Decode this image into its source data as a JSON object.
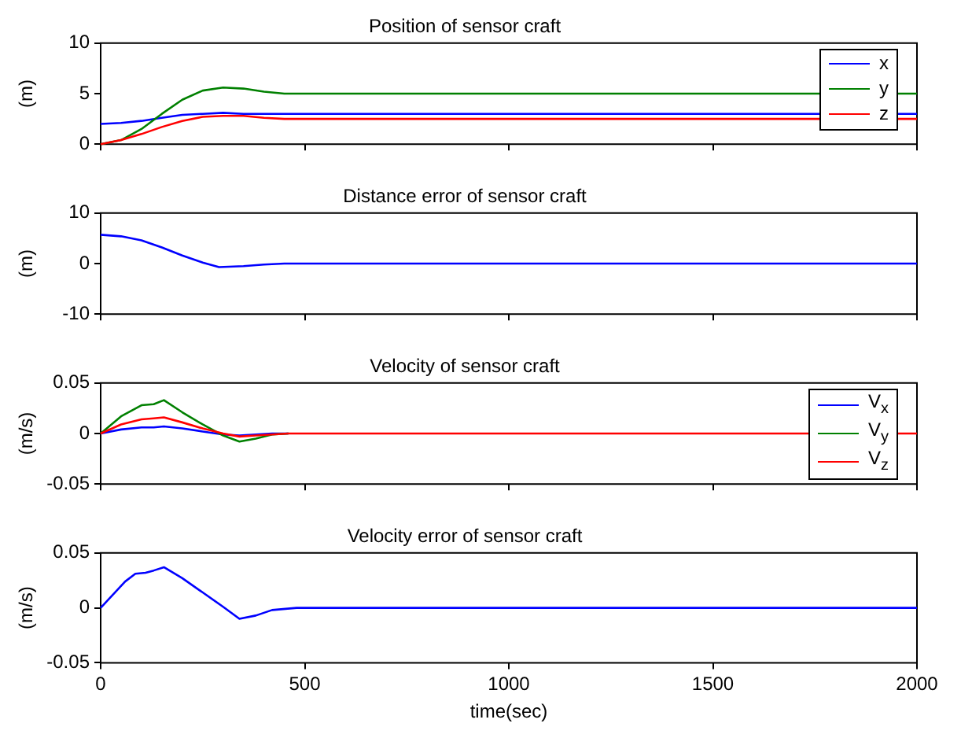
{
  "chart_data": [
    {
      "type": "line",
      "title": "Position of sensor craft",
      "ylabel": "(m)",
      "x": [
        0,
        50,
        100,
        150,
        200,
        250,
        300,
        350,
        400,
        450,
        500,
        1000,
        1500,
        2000
      ],
      "xlim": [
        0,
        2000
      ],
      "xticks": [
        {
          "value": 0,
          "label": null
        },
        {
          "value": 500,
          "label": null
        },
        {
          "value": 1000,
          "label": null
        },
        {
          "value": 1500,
          "label": null
        },
        {
          "value": 2000,
          "label": null
        }
      ],
      "ylim": [
        0,
        10
      ],
      "yticks": [
        0,
        5,
        10
      ],
      "tick_labels": "y",
      "legend": "top right",
      "grid": false,
      "series": [
        {
          "name": "x",
          "color": "#0000ff",
          "values": [
            2.0,
            2.1,
            2.3,
            2.6,
            2.9,
            3.0,
            3.1,
            3.0,
            3.0,
            3.0,
            3.0,
            3.0,
            3.0,
            3.0
          ]
        },
        {
          "name": "y",
          "color": "#008000",
          "values": [
            0,
            0.4,
            1.5,
            3.0,
            4.4,
            5.3,
            5.6,
            5.5,
            5.2,
            5.0,
            5.0,
            5.0,
            5.0,
            5.0
          ]
        },
        {
          "name": "z",
          "color": "#ff0000",
          "values": [
            0,
            0.4,
            1.0,
            1.7,
            2.3,
            2.7,
            2.8,
            2.8,
            2.6,
            2.5,
            2.5,
            2.5,
            2.5,
            2.5
          ]
        }
      ]
    },
    {
      "type": "line",
      "title": "Distance error of sensor craft",
      "ylabel": "(m)",
      "x": [
        0,
        50,
        100,
        150,
        200,
        250,
        290,
        350,
        400,
        450,
        500,
        1000,
        1500,
        2000
      ],
      "xlim": [
        0,
        2000
      ],
      "xticks": [
        {
          "value": 0,
          "label": null
        },
        {
          "value": 500,
          "label": null
        },
        {
          "value": 1000,
          "label": null
        },
        {
          "value": 1500,
          "label": null
        },
        {
          "value": 2000,
          "label": null
        }
      ],
      "ylim": [
        -10,
        10
      ],
      "yticks": [
        -10,
        0,
        10
      ],
      "tick_labels": "y",
      "grid": false,
      "series": [
        {
          "color": "#0000ff",
          "values": [
            5.7,
            5.4,
            4.6,
            3.2,
            1.6,
            0.2,
            -0.7,
            -0.5,
            -0.2,
            0,
            0,
            0,
            0,
            0
          ]
        }
      ]
    },
    {
      "type": "line",
      "title": "Velocity of sensor craft",
      "ylabel": "(m/s)",
      "x": [
        0,
        50,
        100,
        130,
        155,
        200,
        250,
        300,
        340,
        380,
        420,
        460,
        1000,
        2000
      ],
      "xlim": [
        0,
        2000
      ],
      "xticks": [
        {
          "value": 0,
          "label": null
        },
        {
          "value": 500,
          "label": null
        },
        {
          "value": 1000,
          "label": null
        },
        {
          "value": 1500,
          "label": null
        },
        {
          "value": 2000,
          "label": null
        }
      ],
      "ylim": [
        -0.05,
        0.05
      ],
      "yticks": [
        -0.05,
        0,
        0.05
      ],
      "tick_labels": "y",
      "legend": "top right",
      "grid": false,
      "series": [
        {
          "name": "V$_{x}$",
          "color": "#0000ff",
          "values": [
            0,
            0.004,
            0.006,
            0.006,
            0.007,
            0.005,
            0.002,
            -0.001,
            -0.002,
            -0.001,
            0,
            0,
            null,
            null
          ]
        },
        {
          "name": "V$_{y}$",
          "color": "#008000",
          "values": [
            0,
            0.017,
            0.028,
            0.029,
            0.033,
            0.021,
            0.009,
            -0.002,
            -0.008,
            -0.005,
            -0.001,
            0,
            null,
            null
          ]
        },
        {
          "name": "V$_{z}$",
          "color": "#ff0000",
          "values": [
            0,
            0.009,
            0.014,
            0.015,
            0.016,
            0.011,
            0.005,
            0,
            -0.003,
            -0.002,
            -0.001,
            0,
            0,
            0
          ]
        }
      ]
    },
    {
      "type": "line",
      "title": "Velocity error of sensor craft",
      "ylabel": "(m/s)",
      "xlabel": "time(sec)",
      "x": [
        0,
        30,
        60,
        85,
        110,
        130,
        155,
        200,
        250,
        300,
        340,
        380,
        420,
        480,
        1000,
        2000
      ],
      "xlim": [
        0,
        2000
      ],
      "xticks": [
        0,
        500,
        1000,
        1500,
        2000
      ],
      "ylim": [
        -0.05,
        0.05
      ],
      "yticks": [
        -0.05,
        0,
        0.05
      ],
      "grid": false,
      "series": [
        {
          "color": "#0000ff",
          "values": [
            0,
            0.012,
            0.024,
            0.031,
            0.032,
            0.034,
            0.037,
            0.027,
            0.014,
            0.001,
            -0.01,
            -0.007,
            -0.002,
            0,
            0,
            0
          ]
        }
      ]
    }
  ]
}
